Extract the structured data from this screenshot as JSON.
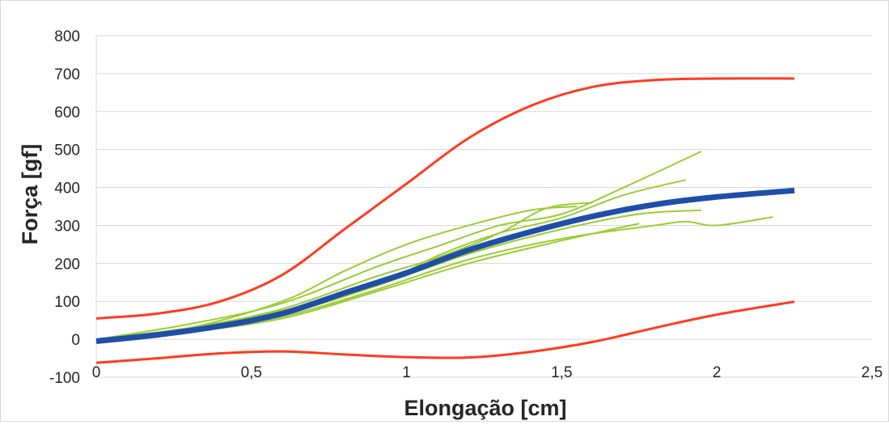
{
  "chart_data": {
    "type": "line",
    "title": "",
    "xlabel": "Elongação [cm]",
    "ylabel": "Força [gf]",
    "xlim": [
      0,
      2.5
    ],
    "ylim": [
      -100,
      800
    ],
    "x_ticks": [
      "0",
      "0,5",
      "1",
      "1,5",
      "2",
      "2,5"
    ],
    "y_ticks": [
      "-100",
      "0",
      "100",
      "200",
      "300",
      "400",
      "500",
      "600",
      "700",
      "800"
    ],
    "grid": true,
    "legend": "none",
    "colors": {
      "envelope": "#ff3b1f",
      "samples": "#9acd32",
      "mean": "#1f4ea8",
      "grid": "#d9d9d9"
    },
    "series": [
      {
        "role": "upper-limit",
        "color": "#ff3b1f",
        "points": [
          [
            0,
            55
          ],
          [
            0.2,
            68
          ],
          [
            0.4,
            100
          ],
          [
            0.6,
            170
          ],
          [
            0.8,
            290
          ],
          [
            1.0,
            410
          ],
          [
            1.2,
            530
          ],
          [
            1.4,
            615
          ],
          [
            1.6,
            665
          ],
          [
            1.8,
            683
          ],
          [
            2.0,
            687
          ],
          [
            2.25,
            687
          ]
        ]
      },
      {
        "role": "lower-limit",
        "color": "#ff3b1f",
        "points": [
          [
            0,
            -62
          ],
          [
            0.2,
            -50
          ],
          [
            0.4,
            -37
          ],
          [
            0.6,
            -32
          ],
          [
            0.8,
            -40
          ],
          [
            1.0,
            -47
          ],
          [
            1.2,
            -48
          ],
          [
            1.4,
            -33
          ],
          [
            1.6,
            -7
          ],
          [
            1.8,
            30
          ],
          [
            2.0,
            65
          ],
          [
            2.25,
            99
          ]
        ]
      },
      {
        "role": "mean",
        "color": "#1f4ea8",
        "points": [
          [
            0,
            -5
          ],
          [
            0.2,
            12
          ],
          [
            0.4,
            35
          ],
          [
            0.6,
            68
          ],
          [
            0.8,
            122
          ],
          [
            1.0,
            175
          ],
          [
            1.2,
            235
          ],
          [
            1.4,
            283
          ],
          [
            1.6,
            324
          ],
          [
            1.8,
            355
          ],
          [
            2.0,
            375
          ],
          [
            2.25,
            392
          ]
        ]
      },
      {
        "role": "sample",
        "color": "#9acd32",
        "points": [
          [
            0,
            0
          ],
          [
            0.3,
            40
          ],
          [
            0.6,
            95
          ],
          [
            0.9,
            190
          ],
          [
            1.1,
            245
          ],
          [
            1.3,
            300
          ],
          [
            1.5,
            330
          ],
          [
            1.7,
            400
          ],
          [
            1.95,
            495
          ]
        ]
      },
      {
        "role": "sample",
        "color": "#9acd32",
        "points": [
          [
            0,
            0
          ],
          [
            0.3,
            25
          ],
          [
            0.6,
            75
          ],
          [
            0.9,
            140
          ],
          [
            1.1,
            220
          ],
          [
            1.3,
            280
          ],
          [
            1.5,
            320
          ],
          [
            1.7,
            380
          ],
          [
            1.9,
            420
          ]
        ]
      },
      {
        "role": "sample",
        "color": "#9acd32",
        "points": [
          [
            0,
            0
          ],
          [
            0.3,
            20
          ],
          [
            0.6,
            65
          ],
          [
            0.9,
            140
          ],
          [
            1.2,
            225
          ],
          [
            1.5,
            290
          ],
          [
            1.75,
            330
          ],
          [
            1.95,
            340
          ]
        ]
      },
      {
        "role": "sample",
        "color": "#9acd32",
        "points": [
          [
            0,
            0
          ],
          [
            0.3,
            22
          ],
          [
            0.6,
            60
          ],
          [
            0.9,
            130
          ],
          [
            1.2,
            210
          ],
          [
            1.5,
            265
          ],
          [
            1.8,
            300
          ],
          [
            1.9,
            310
          ],
          [
            2.0,
            300
          ],
          [
            2.18,
            322
          ]
        ]
      },
      {
        "role": "sample",
        "color": "#9acd32",
        "points": [
          [
            0,
            0
          ],
          [
            0.3,
            20
          ],
          [
            0.6,
            55
          ],
          [
            0.9,
            125
          ],
          [
            1.2,
            200
          ],
          [
            1.5,
            260
          ],
          [
            1.75,
            305
          ]
        ]
      },
      {
        "role": "sample",
        "color": "#9acd32",
        "points": [
          [
            0,
            0
          ],
          [
            0.3,
            30
          ],
          [
            0.6,
            80
          ],
          [
            0.9,
            165
          ],
          [
            1.1,
            215
          ],
          [
            1.3,
            280
          ],
          [
            1.45,
            345
          ],
          [
            1.6,
            360
          ]
        ]
      },
      {
        "role": "sample",
        "color": "#9acd32",
        "points": [
          [
            0,
            0
          ],
          [
            0.3,
            30
          ],
          [
            0.6,
            100
          ],
          [
            0.8,
            180
          ],
          [
            1.0,
            250
          ],
          [
            1.2,
            300
          ],
          [
            1.4,
            340
          ],
          [
            1.55,
            350
          ]
        ]
      }
    ]
  }
}
